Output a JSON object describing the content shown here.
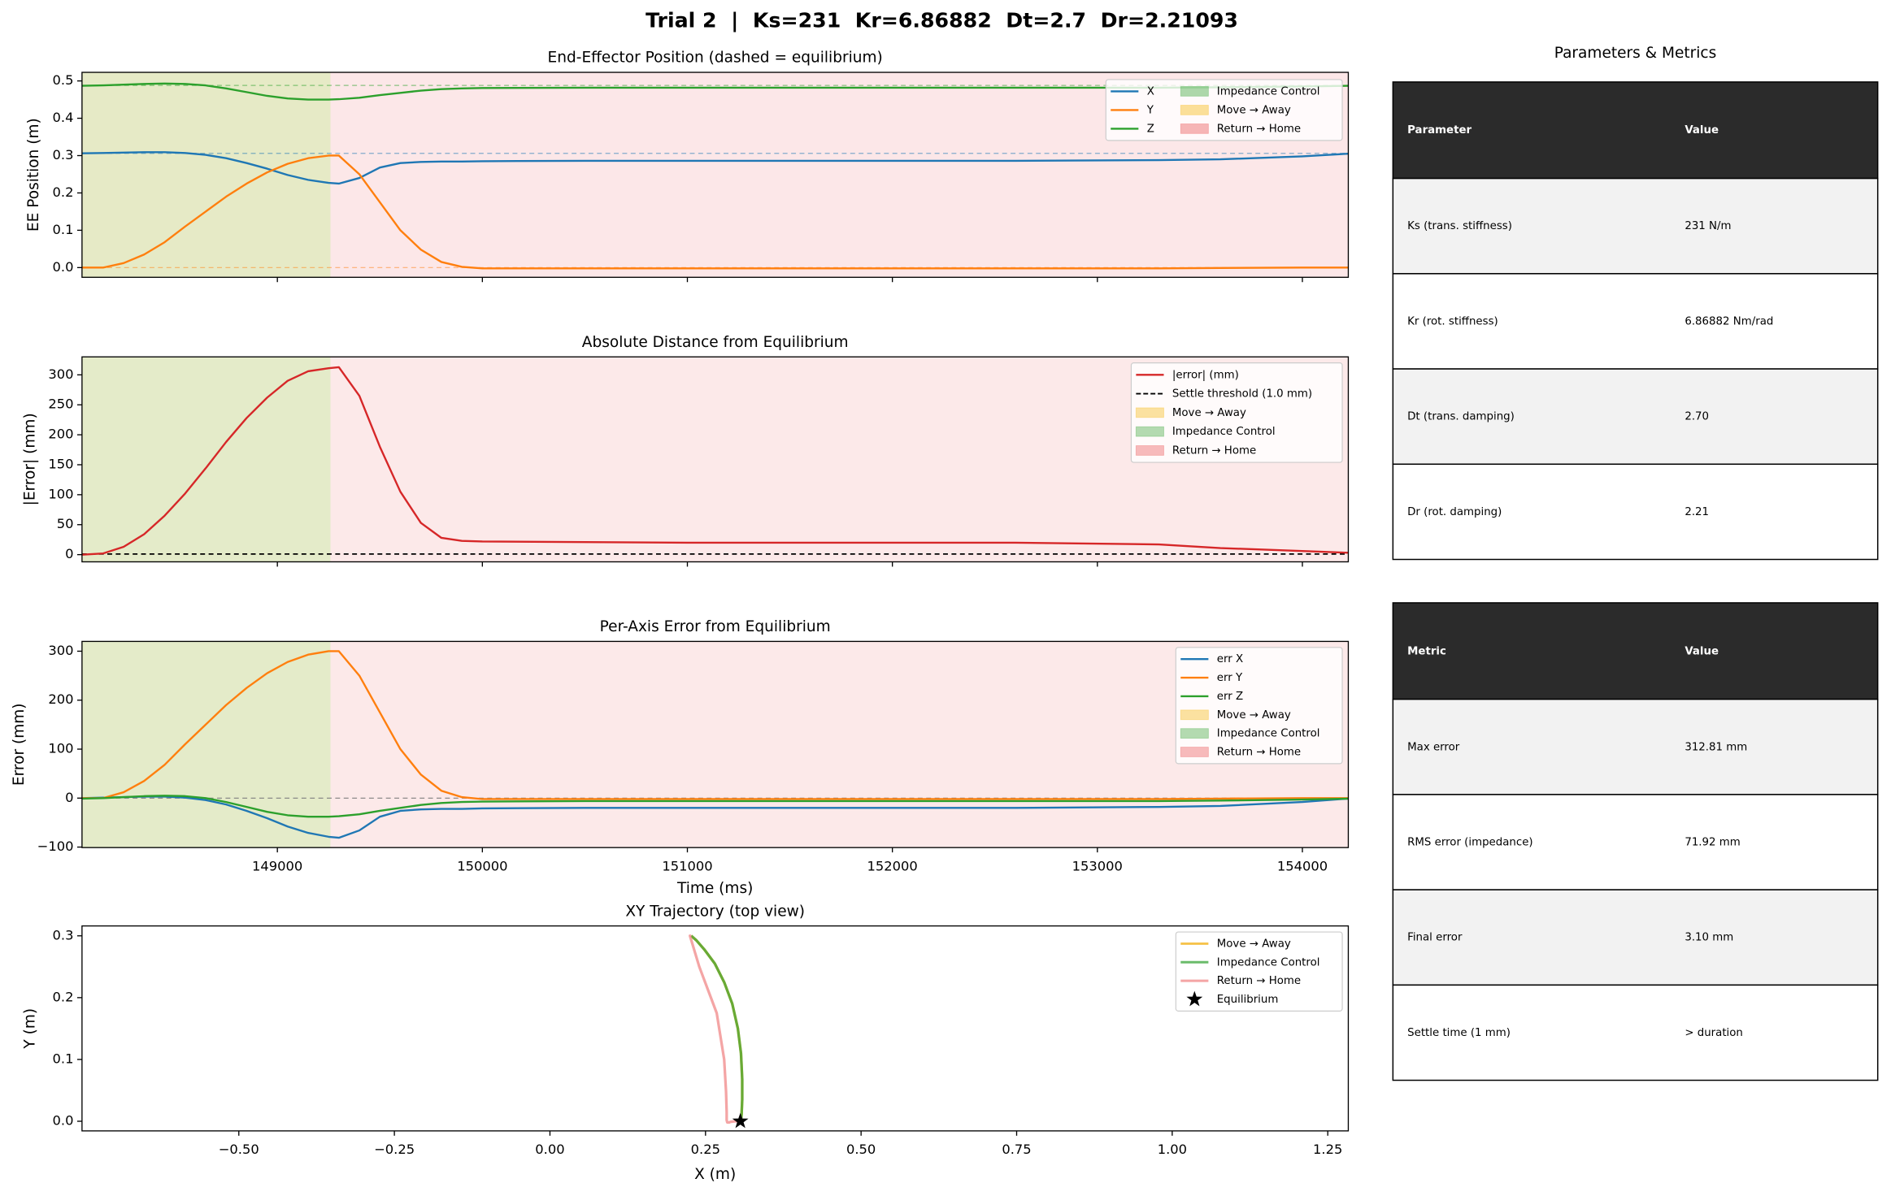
{
  "title": "Trial 2  |  Ks=231  Kr=6.86882  Dt=2.7  Dr=2.21093",
  "chart_data": [
    {
      "type": "line",
      "title": "End-Effector Position  (dashed = equilibrium)",
      "y_label": "EE Position (m)",
      "x": [
        148047,
        148150,
        148250,
        148350,
        148450,
        148550,
        148650,
        148750,
        148850,
        148950,
        149050,
        149150,
        149250,
        149300,
        149400,
        149500,
        149600,
        149700,
        149800,
        149900,
        150000,
        150500,
        151000,
        152000,
        152600,
        153300,
        153600,
        154000,
        154224
      ],
      "series": [
        {
          "name": "X",
          "color": "#1f77b4",
          "equilibrium": 0.306,
          "values": [
            0.306,
            0.307,
            0.308,
            0.309,
            0.309,
            0.307,
            0.302,
            0.293,
            0.28,
            0.265,
            0.248,
            0.235,
            0.227,
            0.225,
            0.24,
            0.268,
            0.28,
            0.283,
            0.284,
            0.284,
            0.285,
            0.286,
            0.286,
            0.286,
            0.286,
            0.288,
            0.29,
            0.298,
            0.305
          ]
        },
        {
          "name": "Y",
          "color": "#ff7f0e",
          "equilibrium": 0.0,
          "values": [
            0,
            0,
            0.012,
            0.035,
            0.068,
            0.11,
            0.15,
            0.19,
            0.225,
            0.255,
            0.278,
            0.293,
            0.3,
            0.3,
            0.25,
            0.175,
            0.1,
            0.048,
            0.015,
            0.002,
            -0.002,
            -0.002,
            -0.002,
            -0.002,
            -0.002,
            -0.002,
            -0.001,
            0,
            0
          ]
        },
        {
          "name": "Z",
          "color": "#2ca02c",
          "equilibrium": 0.488,
          "values": [
            0.487,
            0.488,
            0.49,
            0.492,
            0.493,
            0.492,
            0.488,
            0.48,
            0.47,
            0.46,
            0.453,
            0.45,
            0.45,
            0.451,
            0.455,
            0.462,
            0.468,
            0.474,
            0.478,
            0.48,
            0.481,
            0.482,
            0.482,
            0.482,
            0.482,
            0.482,
            0.483,
            0.485,
            0.487
          ]
        }
      ],
      "spans": [
        {
          "name": "Impedance Control",
          "color": "#2ca02c",
          "range": [
            148047,
            149259
          ]
        },
        {
          "name": "Move → Away",
          "color": "#f5b400",
          "range": [
            148047,
            149259
          ]
        },
        {
          "name": "Return → Home",
          "color": "#e8484a",
          "range": [
            149259,
            154224
          ]
        }
      ],
      "span_alpha": 0.13,
      "xlim": [
        148047,
        154224
      ],
      "xticks": [
        149000,
        150000,
        151000,
        152000,
        153000,
        154000
      ],
      "show_xtick_labels": false,
      "ylim": [
        -0.026,
        0.523
      ],
      "yticks": [
        {
          "value": 0,
          "label": "0.0"
        },
        0.1,
        0.2,
        0.3,
        0.4,
        0.5
      ]
    },
    {
      "type": "line",
      "title": "Absolute Distance from Equilibrium",
      "y_label": "|Error| (mm)",
      "x": [
        148047,
        148150,
        148250,
        148350,
        148450,
        148550,
        148650,
        148750,
        148850,
        148950,
        149050,
        149150,
        149250,
        149300,
        149400,
        149500,
        149600,
        149700,
        149800,
        149900,
        150000,
        150500,
        151000,
        152000,
        152600,
        153300,
        153600,
        154000,
        154224
      ],
      "series": [
        {
          "name": "|error| (mm)",
          "color": "#d62728",
          "values": [
            0,
            2,
            13,
            34,
            65,
            102,
            144,
            188,
            228,
            262,
            290,
            306,
            311,
            312.81,
            265,
            180,
            105,
            53,
            28,
            23,
            22,
            21,
            20,
            20,
            20,
            17,
            11,
            6,
            3.1
          ]
        }
      ],
      "threshold": {
        "name": "Settle threshold (1.0 mm)",
        "value": 1.0,
        "color": "#000000"
      },
      "spans": [
        {
          "name": "Move → Away",
          "color": "#f5b400",
          "range": [
            148047,
            149259
          ]
        },
        {
          "name": "Impedance Control",
          "color": "#2ca02c",
          "range": [
            148047,
            149259
          ]
        },
        {
          "name": "Return → Home",
          "color": "#e8484a",
          "range": [
            149259,
            154224
          ]
        }
      ],
      "span_alpha": 0.12,
      "xlim": [
        148047,
        154224
      ],
      "xticks": [
        149000,
        150000,
        151000,
        152000,
        153000,
        154000
      ],
      "show_xtick_labels": false,
      "ylim": [
        -12,
        330
      ],
      "yticks": [
        0,
        50,
        100,
        150,
        200,
        250,
        300
      ]
    },
    {
      "type": "line",
      "title": "Per-Axis Error from Equilibrium",
      "y_label": "Error (mm)",
      "x_label": "Time (ms)",
      "x": [
        148047,
        148150,
        148250,
        148350,
        148450,
        148550,
        148650,
        148750,
        148850,
        148950,
        149050,
        149150,
        149250,
        149300,
        149400,
        149500,
        149600,
        149700,
        149800,
        149900,
        150000,
        150500,
        151000,
        152000,
        152600,
        153300,
        153600,
        154000,
        154224
      ],
      "series": [
        {
          "name": "err X",
          "color": "#1f77b4",
          "values": [
            0,
            1,
            2,
            3,
            3,
            1,
            -4,
            -13,
            -26,
            -41,
            -58,
            -71,
            -79,
            -81,
            -66,
            -38,
            -26,
            -23,
            -22,
            -22,
            -21,
            -20,
            -20,
            -20,
            -20,
            -18,
            -16,
            -8,
            -1
          ]
        },
        {
          "name": "err Y",
          "color": "#ff7f0e",
          "values": [
            0,
            0,
            12,
            35,
            68,
            110,
            150,
            190,
            225,
            255,
            278,
            293,
            300,
            300,
            250,
            175,
            100,
            48,
            15,
            2,
            -2,
            -2,
            -2,
            -2,
            -2,
            -2,
            -1,
            0,
            0
          ]
        },
        {
          "name": "err Z",
          "color": "#2ca02c",
          "values": [
            -1,
            0,
            2,
            4,
            5,
            4,
            0,
            -8,
            -18,
            -28,
            -35,
            -38,
            -38,
            -37,
            -33,
            -26,
            -20,
            -14,
            -10,
            -8,
            -7,
            -6,
            -6,
            -6,
            -6,
            -6,
            -5,
            -3,
            -1
          ]
        }
      ],
      "hline": {
        "value": 0,
        "color": "#808080"
      },
      "spans": [
        {
          "name": "Move → Away",
          "color": "#f5b400",
          "range": [
            148047,
            149259
          ]
        },
        {
          "name": "Impedance Control",
          "color": "#2ca02c",
          "range": [
            148047,
            149259
          ]
        },
        {
          "name": "Return → Home",
          "color": "#e8484a",
          "range": [
            149259,
            154224
          ]
        }
      ],
      "span_alpha": 0.12,
      "xlim": [
        148047,
        154224
      ],
      "xticks": [
        149000,
        150000,
        151000,
        152000,
        153000,
        154000
      ],
      "show_xtick_labels": true,
      "ylim": [
        -101,
        320
      ],
      "yticks": [
        {
          "value": -100,
          "label": "−100"
        },
        0,
        100,
        200,
        300
      ]
    },
    {
      "type": "line",
      "title": "XY Trajectory (top view)",
      "x_label": "X (m)",
      "y_label": "Y (m)",
      "series": [
        {
          "name": "Move → Away",
          "color": "#f2a900",
          "x": [
            0.306,
            0.307,
            0.308,
            0.309,
            0.309,
            0.307,
            0.302,
            0.293,
            0.28,
            0.265,
            0.248,
            0.235,
            0.227
          ],
          "values": [
            0,
            0,
            0.012,
            0.035,
            0.068,
            0.11,
            0.15,
            0.19,
            0.225,
            0.255,
            0.278,
            0.293,
            0.3
          ]
        },
        {
          "name": "Impedance Control",
          "color": "#2ca02c",
          "x": [
            0.306,
            0.307,
            0.308,
            0.309,
            0.309,
            0.307,
            0.302,
            0.293,
            0.28,
            0.265,
            0.248,
            0.235,
            0.227
          ],
          "values": [
            0,
            0,
            0.012,
            0.035,
            0.068,
            0.11,
            0.15,
            0.19,
            0.225,
            0.255,
            0.278,
            0.293,
            0.3
          ]
        },
        {
          "name": "Return → Home",
          "color": "#ef7f7f",
          "x": [
            0.227,
            0.225,
            0.24,
            0.268,
            0.28,
            0.283,
            0.284,
            0.284,
            0.285,
            0.286,
            0.286,
            0.286,
            0.286,
            0.288,
            0.29,
            0.298,
            0.305
          ],
          "values": [
            0.3,
            0.3,
            0.25,
            0.175,
            0.1,
            0.048,
            0.015,
            0.002,
            -0.002,
            -0.002,
            -0.002,
            -0.002,
            -0.002,
            -0.002,
            -0.001,
            0,
            0
          ]
        }
      ],
      "markers": [
        {
          "name": "Equilibrium",
          "x": 0.306,
          "y": 0.0,
          "color": "#000000"
        }
      ],
      "xlim": [
        -0.752,
        1.283
      ],
      "xticks": [
        {
          "value": -0.5,
          "label": "−0.50"
        },
        {
          "value": -0.25,
          "label": "−0.25"
        },
        {
          "value": 0,
          "label": "0.00"
        },
        {
          "value": 0.25,
          "label": "0.25"
        },
        {
          "value": 0.5,
          "label": "0.50"
        },
        {
          "value": 0.75,
          "label": "0.75"
        },
        {
          "value": 1,
          "label": "1.00"
        },
        {
          "value": 1.25,
          "label": "1.25"
        }
      ],
      "show_xtick_labels": true,
      "ylim": [
        -0.0156,
        0.316
      ],
      "yticks": [
        {
          "value": 0,
          "label": "0.0"
        },
        0.1,
        0.2,
        0.3
      ]
    }
  ],
  "panel_title": "Parameters & Metrics",
  "tables": [
    {
      "header": [
        "Parameter",
        "Value"
      ],
      "rows": [
        [
          "Ks (trans. stiffness)",
          "231 N/m"
        ],
        [
          "Kr (rot. stiffness)",
          "6.86882 Nm/rad"
        ],
        [
          "Dt (trans. damping)",
          "2.70"
        ],
        [
          "Dr (rot. damping)",
          "2.21"
        ]
      ]
    },
    {
      "header": [
        "Metric",
        "Value"
      ],
      "rows": [
        [
          "Max error",
          "312.81 mm"
        ],
        [
          "RMS error (impedance)",
          "71.92 mm"
        ],
        [
          "Final error",
          "3.10 mm"
        ],
        [
          "Settle time (1 mm)",
          "> duration"
        ]
      ]
    }
  ]
}
